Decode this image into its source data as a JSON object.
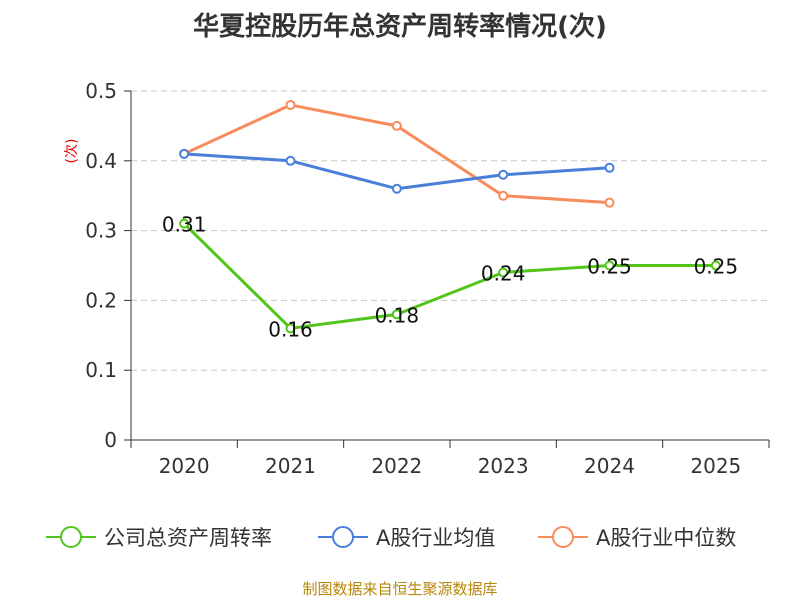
{
  "chart_data": {
    "type": "line",
    "title": "华夏控股历年总资产周转率情况(次)",
    "ylabel": "(次)",
    "categories": [
      "2020",
      "2021",
      "2022",
      "2023",
      "2024",
      "2025"
    ],
    "ylim": [
      0,
      0.5
    ],
    "yticks": [
      "0",
      "0.1",
      "0.2",
      "0.3",
      "0.4",
      "0.5"
    ],
    "grid": true,
    "legend_position": "bottom",
    "series": [
      {
        "name": "公司总资产周转率",
        "color": "#52c41a",
        "values": [
          0.31,
          0.16,
          0.18,
          0.24,
          0.25,
          0.25
        ],
        "labels": [
          "0.31",
          "0.16",
          "0.18",
          "0.24",
          "0.25",
          "0.25"
        ]
      },
      {
        "name": "A股行业均值",
        "color": "#4a7fd9",
        "values": [
          0.41,
          0.4,
          0.36,
          0.38,
          0.39,
          null
        ]
      },
      {
        "name": "A股行业中位数",
        "color": "#f78c5a",
        "values": [
          0.41,
          0.48,
          0.45,
          0.35,
          0.34,
          null
        ]
      }
    ]
  },
  "source": "制图数据来自恒生聚源数据库"
}
